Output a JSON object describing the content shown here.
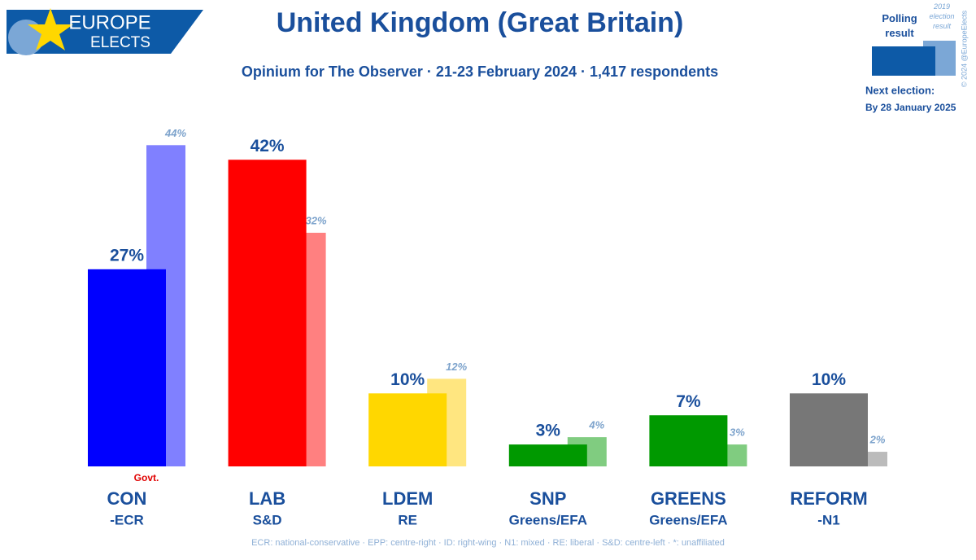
{
  "chart_data": {
    "type": "bar",
    "title": "United Kingdom (Great Britain)",
    "subtitle": "Opinium for The Observer · 21-23 February 2024 · 1,417 respondents",
    "categories": [
      "CON",
      "LAB",
      "LDEM",
      "SNP",
      "GREENS",
      "REFORM"
    ],
    "groups": [
      "-ECR",
      "S&D",
      "RE",
      "Greens/EFA",
      "Greens/EFA",
      "-N1"
    ],
    "series": [
      {
        "name": "2019 election result",
        "colors": [
          "#8080ff",
          "#ff8080",
          "#ffe680",
          "#80cc80",
          "#80cc80",
          "#bbbbbb"
        ],
        "values": [
          44,
          32,
          12,
          4,
          3,
          2
        ],
        "value_labels": [
          "44%",
          "32%",
          "12%",
          "4%",
          "3%",
          "2%"
        ],
        "legend_color": "#7ba7d6"
      },
      {
        "name": "Polling result",
        "colors": [
          "#0000ff",
          "#ff0000",
          "#ffd700",
          "#009900",
          "#009900",
          "#777777"
        ],
        "values": [
          27,
          42,
          10,
          3,
          7,
          10
        ],
        "value_labels": [
          "27%",
          "42%",
          "10%",
          "3%",
          "7%",
          "10%"
        ],
        "legend_color": "#0d5aa7"
      }
    ],
    "annotation": "Govt.",
    "footnote": "ECR: national-conservative · EPP: centre-right · ID: right-wing · N1: mixed · RE: liberal · S&D: centre-left · *: unaffiliated",
    "next_election_label": "Next election:",
    "next_election_date": "By 28 January 2025",
    "copyright": "© 2024 @EuropeElects",
    "logo": [
      "EUROPE",
      "ELECTS"
    ]
  }
}
